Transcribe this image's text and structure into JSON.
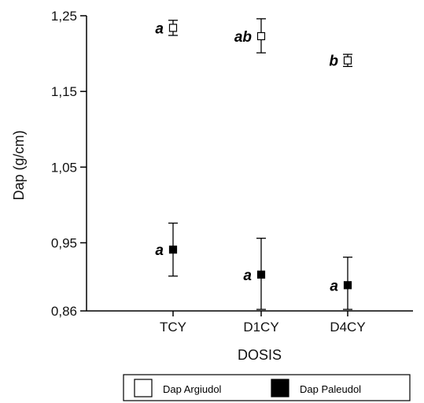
{
  "chart_data": {
    "type": "scatter",
    "categories": [
      "TCY",
      "D1CY",
      "D4CY"
    ],
    "xlabel": "DOSIS",
    "ylabel": "Dap (g/cm)",
    "ylim": [
      0.86,
      1.25
    ],
    "yticks": [
      "1,25",
      "1,15",
      "1,05",
      "0,95",
      "0,86"
    ],
    "ytick_values": [
      1.25,
      1.15,
      1.05,
      0.95,
      0.86
    ],
    "series": [
      {
        "name": "Dap Argiudol",
        "marker": "open-square",
        "values": [
          1.234,
          1.223,
          1.191
        ],
        "error_low": [
          1.224,
          1.201,
          1.183
        ],
        "error_high": [
          1.244,
          1.246,
          1.199
        ],
        "letters": [
          "a",
          "ab",
          "b"
        ]
      },
      {
        "name": "Dap Paleudol",
        "marker": "filled-square",
        "values": [
          0.941,
          0.908,
          0.894
        ],
        "error_low": [
          0.906,
          0.862,
          0.862
        ],
        "error_high": [
          0.976,
          0.956,
          0.931
        ],
        "letters": [
          "a",
          "a",
          "a"
        ]
      }
    ],
    "legend_position": "bottom",
    "grid": false
  },
  "colors": {
    "axis": "#000000",
    "marker_fill_open": "#ffffff",
    "marker_fill_solid": "#000000"
  }
}
